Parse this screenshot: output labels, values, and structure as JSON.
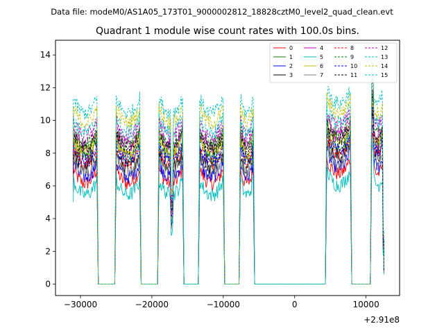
{
  "suptitle": "Data file: modeM0/AS1A05_173T01_9000002812_18828cztM0_level2_quad_clean.evt",
  "chart_data": {
    "type": "line",
    "title": "Quadrant 1 module wise count rates with 100.0s bins.",
    "xlabel": "",
    "ylabel": "",
    "x_offset_label": "+2.91e8",
    "xlim": [
      -33500,
      14700
    ],
    "ylim": [
      -0.7,
      14.9
    ],
    "x_ticks": [
      -30000,
      -20000,
      -10000,
      0,
      10000
    ],
    "x_tick_labels": [
      "−30000",
      "−20000",
      "−10000",
      "0",
      "10000"
    ],
    "y_ticks": [
      0,
      2,
      4,
      6,
      8,
      10,
      12,
      14
    ],
    "y_tick_labels": [
      "0",
      "2",
      "4",
      "6",
      "8",
      "10",
      "12",
      "14"
    ],
    "legend_position": "top-right",
    "segments": [
      {
        "start": -31000,
        "end": -27700
      },
      {
        "start": -25000,
        "end": -21700
      },
      {
        "start": -19000,
        "end": -15700
      },
      {
        "start": -13300,
        "end": -10000
      },
      {
        "start": -7600,
        "end": -5800
      },
      {
        "start": 4500,
        "end": 7800
      },
      {
        "start": 10800,
        "end": 12500
      }
    ],
    "gap_value": 0,
    "bin_width_s": 100,
    "series": [
      {
        "name": "0",
        "color": "#ff0000",
        "style": "solid",
        "level": 6.6
      },
      {
        "name": "1",
        "color": "#008000",
        "style": "solid",
        "level": 8.2
      },
      {
        "name": "2",
        "color": "#0000ff",
        "style": "solid",
        "level": 7.0
      },
      {
        "name": "3",
        "color": "#000000",
        "style": "solid",
        "level": 7.6
      },
      {
        "name": "4",
        "color": "#bf00bf",
        "style": "solid",
        "level": 8.9
      },
      {
        "name": "5",
        "color": "#00bfbf",
        "style": "solid",
        "level": 5.9
      },
      {
        "name": "6",
        "color": "#bfbf00",
        "style": "solid",
        "level": 8.5
      },
      {
        "name": "7",
        "color": "#808080",
        "style": "solid",
        "level": 7.3
      },
      {
        "name": "8",
        "color": "#ff0000",
        "style": "dashed",
        "level": 7.9
      },
      {
        "name": "9",
        "color": "#008000",
        "style": "dashed",
        "level": 9.0
      },
      {
        "name": "10",
        "color": "#0000ff",
        "style": "dashed",
        "level": 8.0
      },
      {
        "name": "11",
        "color": "#000000",
        "style": "dashed",
        "level": 8.7
      },
      {
        "name": "12",
        "color": "#bf00bf",
        "style": "dashed",
        "level": 9.5
      },
      {
        "name": "13",
        "color": "#00bfbf",
        "style": "dashed",
        "level": 10.9
      },
      {
        "name": "14",
        "color": "#bfbf00",
        "style": "dashed",
        "level": 10.3
      },
      {
        "name": "15",
        "color": "#00bfbf",
        "style": "dashed",
        "level": 9.7
      }
    ]
  }
}
